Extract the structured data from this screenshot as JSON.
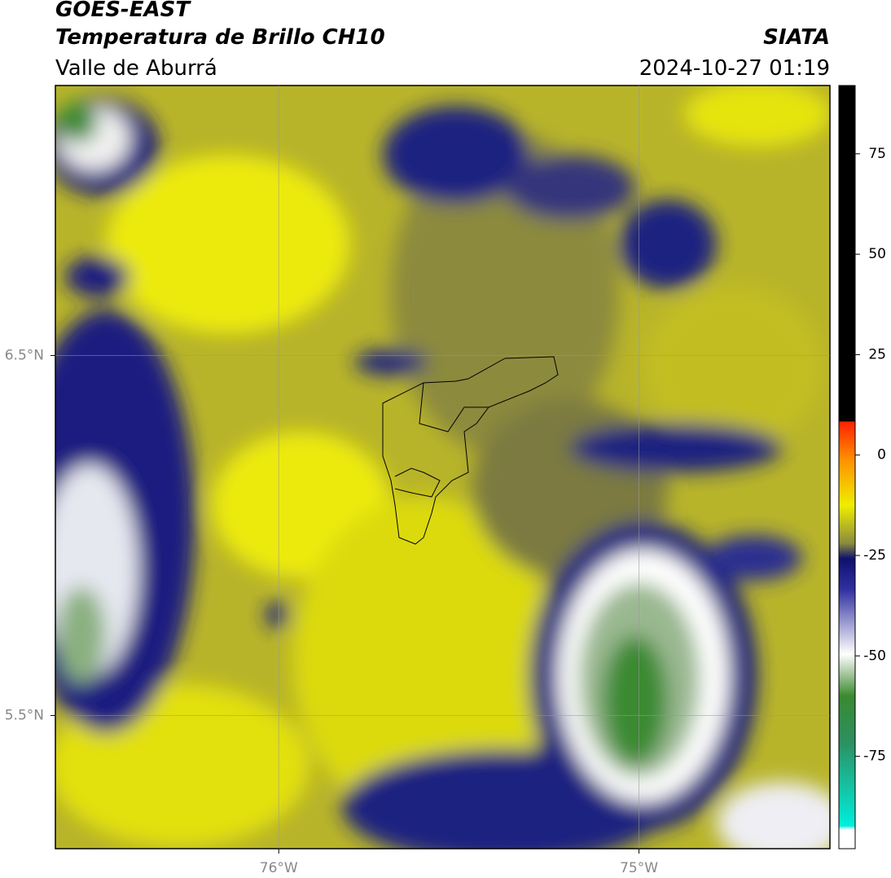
{
  "header": {
    "title": "GOES-EAST",
    "subtitle": "Temperatura de Brillo CH10",
    "region": "Valle de Aburrá",
    "source": "SIATA",
    "datetime": "2024-10-27 01:19"
  },
  "map": {
    "xlim": [
      -76.62,
      -74.47
    ],
    "ylim": [
      5.13,
      7.25
    ],
    "xticks": [
      {
        "value": -76,
        "label": "76°W"
      },
      {
        "value": -75,
        "label": "75°W"
      }
    ],
    "yticks": [
      {
        "value": 6.5,
        "label": "6.5°N"
      },
      {
        "value": 5.5,
        "label": "5.5°N"
      }
    ],
    "grid": true
  },
  "colorbar": {
    "lim": [
      -98,
      92
    ],
    "ticks": [
      75,
      50,
      25,
      0,
      -25,
      -50,
      -75
    ]
  }
}
